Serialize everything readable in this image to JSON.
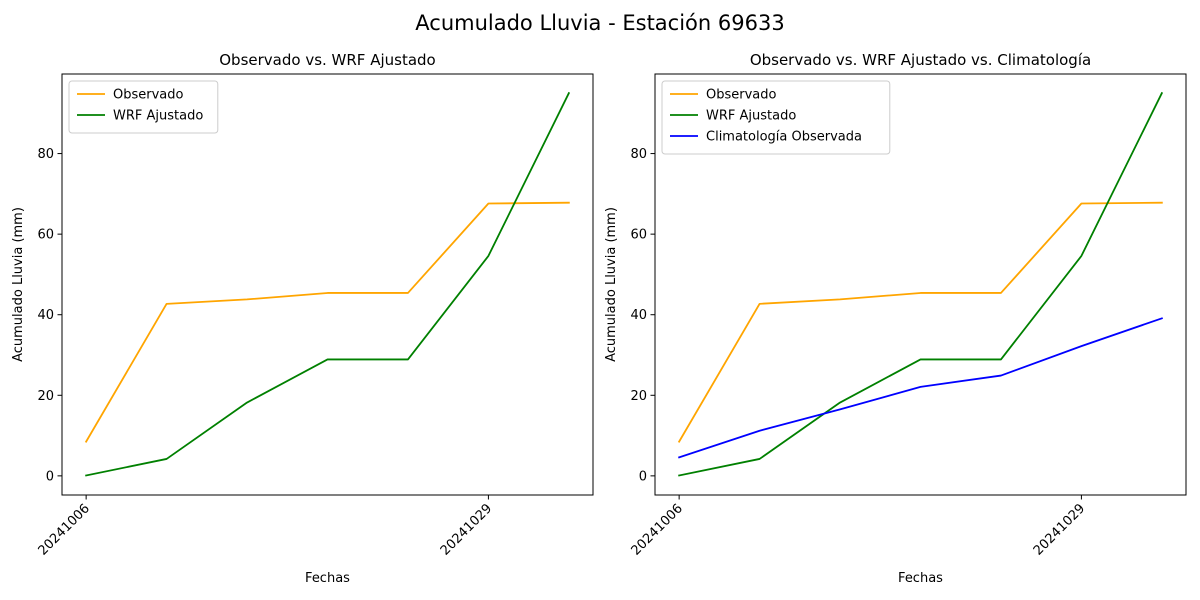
{
  "figure": {
    "title": "Acumulado Lluvia - Estación 69633"
  },
  "chart_data": [
    {
      "type": "line",
      "title": "Observado vs. WRF Ajustado",
      "xlabel": "Fechas",
      "ylabel": "Acumulado Lluvia (mm)",
      "x": [
        0,
        1,
        2,
        3,
        4,
        5,
        6
      ],
      "x_ticks": [
        0,
        5
      ],
      "x_tick_labels": [
        "20241006",
        "20241029"
      ],
      "xlim": [
        -0.3,
        6.3
      ],
      "ylim": [
        -4.75,
        99.75
      ],
      "y_ticks": [
        0,
        20,
        40,
        60,
        80
      ],
      "grid": false,
      "legend": "top-left",
      "series": [
        {
          "name": "Observado",
          "color": "#ffa500",
          "values": [
            8.5,
            42.7,
            43.8,
            45.4,
            45.4,
            67.6,
            67.8
          ]
        },
        {
          "name": "WRF Ajustado",
          "color": "#008000",
          "values": [
            0.1,
            4.2,
            18.2,
            28.9,
            28.9,
            54.6,
            95.0
          ]
        }
      ]
    },
    {
      "type": "line",
      "title": "Observado vs. WRF Ajustado vs. Climatología",
      "xlabel": "Fechas",
      "ylabel": "Acumulado Lluvia (mm)",
      "x": [
        0,
        1,
        2,
        3,
        4,
        5,
        6
      ],
      "x_ticks": [
        0,
        5
      ],
      "x_tick_labels": [
        "20241006",
        "20241029"
      ],
      "xlim": [
        -0.3,
        6.3
      ],
      "ylim": [
        -4.75,
        99.75
      ],
      "y_ticks": [
        0,
        20,
        40,
        60,
        80
      ],
      "grid": false,
      "legend": "top-left",
      "series": [
        {
          "name": "Observado",
          "color": "#ffa500",
          "values": [
            8.5,
            42.7,
            43.8,
            45.4,
            45.4,
            67.6,
            67.8
          ]
        },
        {
          "name": "WRF Ajustado",
          "color": "#008000",
          "values": [
            0.1,
            4.2,
            18.2,
            28.9,
            28.9,
            54.6,
            95.0
          ]
        },
        {
          "name": "Climatología Observada",
          "color": "#0000ff",
          "values": [
            4.6,
            11.2,
            16.5,
            22.1,
            24.9,
            32.2,
            39.1
          ]
        }
      ]
    }
  ]
}
